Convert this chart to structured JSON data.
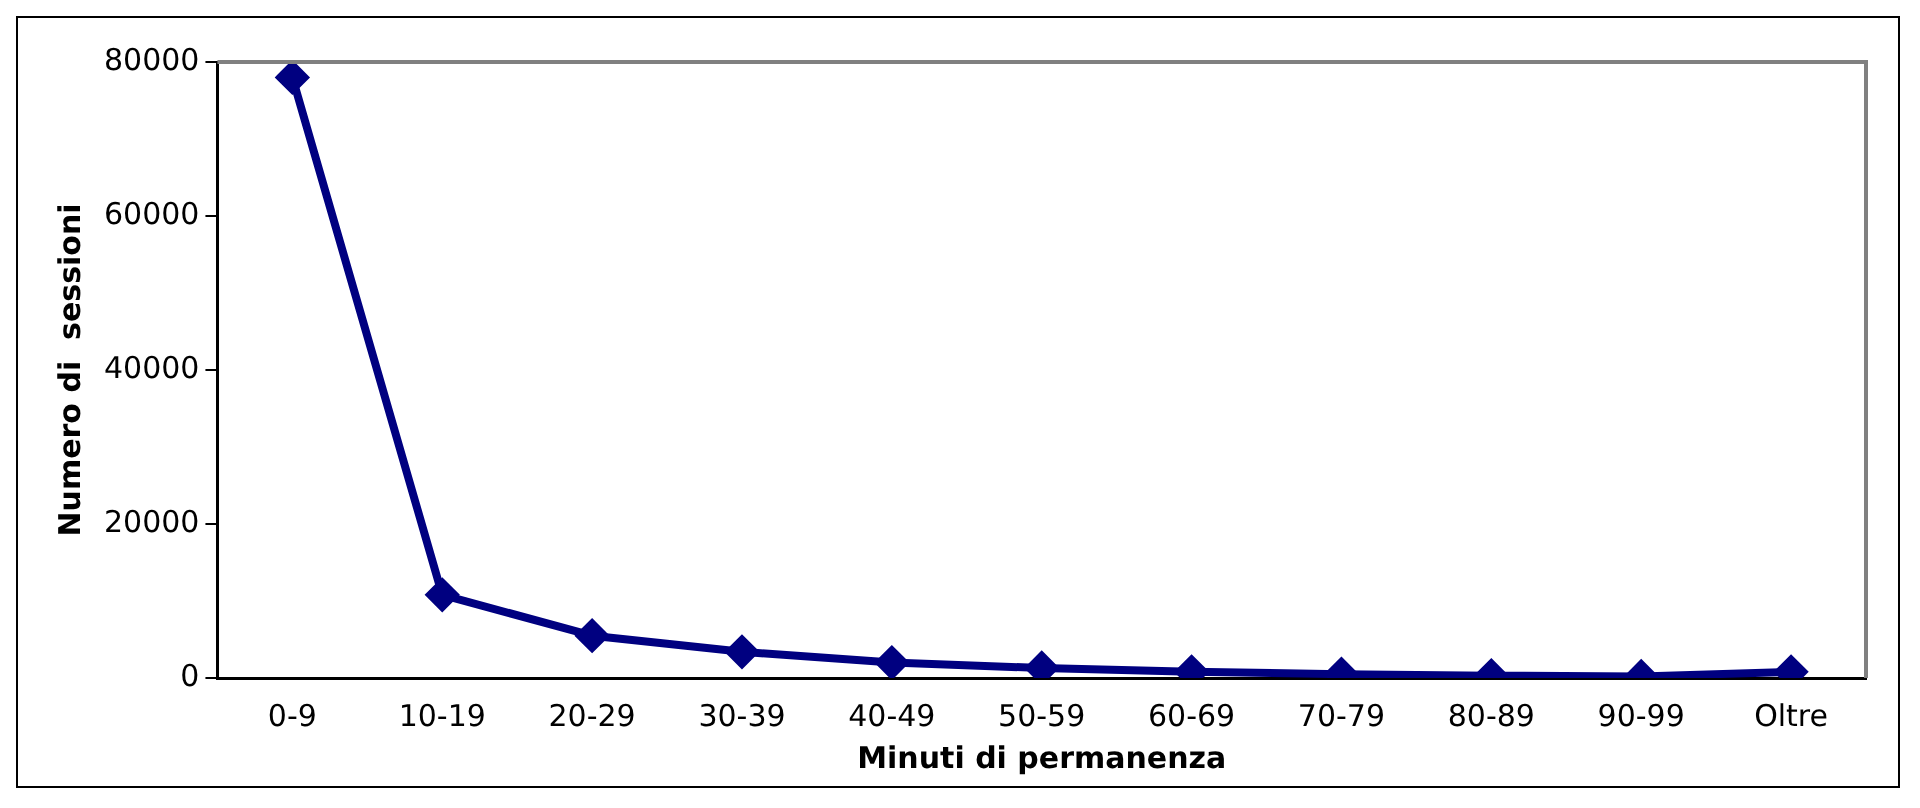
{
  "chart_data": {
    "type": "line",
    "xlabel": "Minuti di permanenza",
    "ylabel": "Numero di  sessioni",
    "categories": [
      "0-9",
      "10-19",
      "20-29",
      "30-39",
      "40-49",
      "50-59",
      "60-69",
      "70-79",
      "80-89",
      "90-99",
      "Oltre"
    ],
    "series": [
      {
        "color": "#000080",
        "values": [
          78000,
          10800,
          5500,
          3400,
          2000,
          1300,
          800,
          500,
          300,
          200,
          800
        ]
      }
    ],
    "ylim": [
      0,
      80000
    ],
    "yticks": [
      0,
      20000,
      40000,
      60000,
      80000
    ],
    "grid": false,
    "legend": false,
    "marker": "diamond",
    "line_style": "solid"
  }
}
